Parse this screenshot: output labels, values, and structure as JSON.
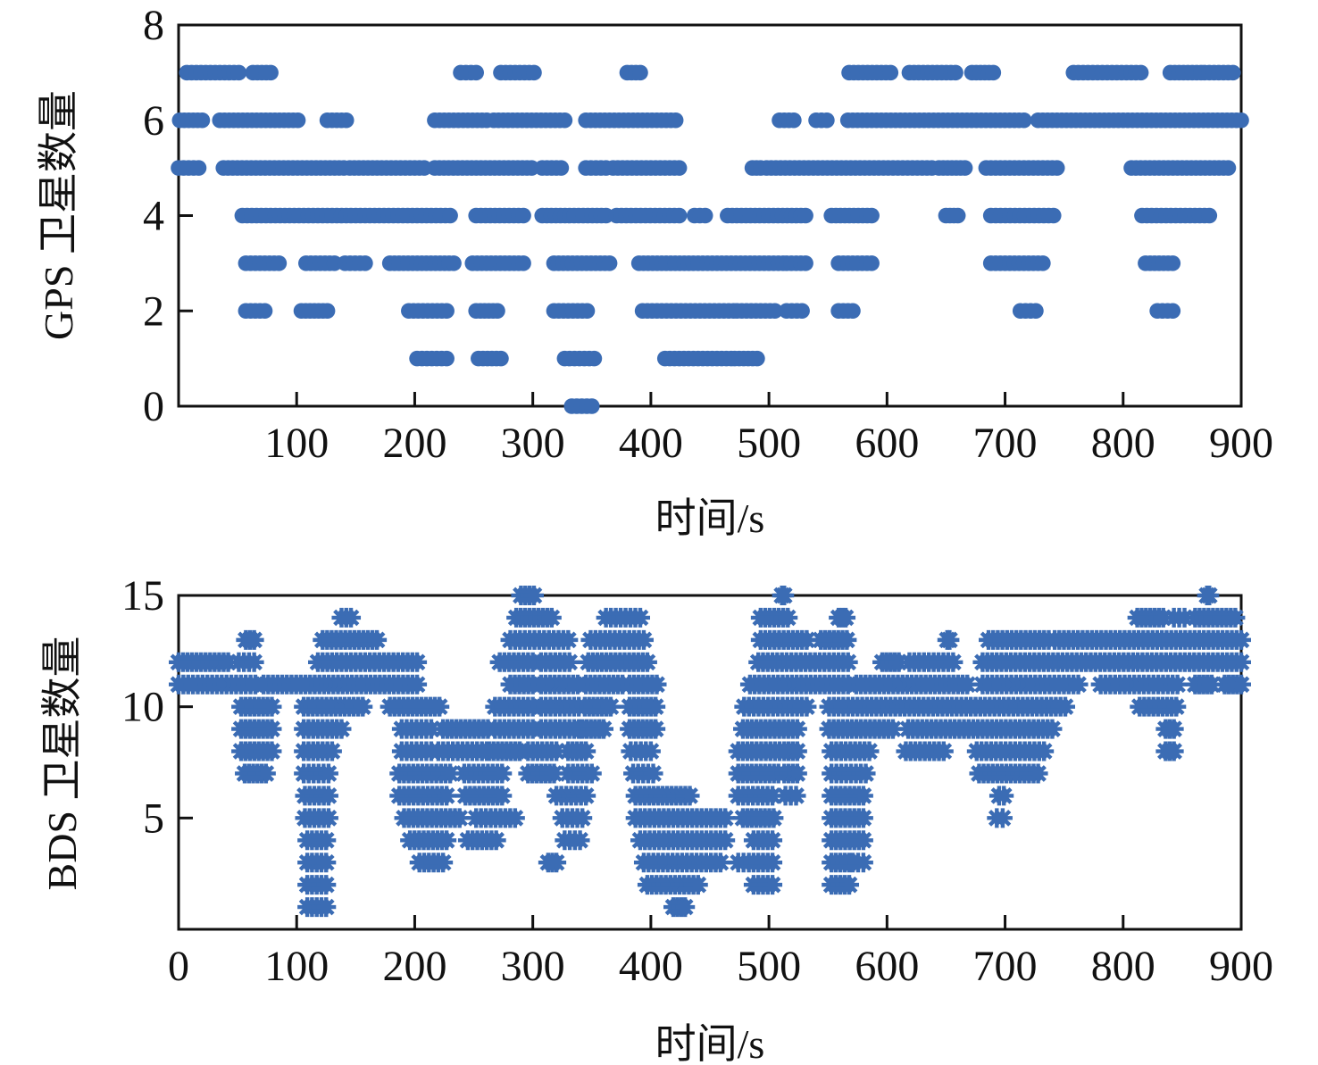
{
  "style": {
    "marker_color": "#3b6cb4",
    "axis_color": "#111111",
    "background": "#ffffff"
  },
  "chart_data": [
    {
      "type": "scatter",
      "marker": "circle",
      "title": "",
      "xlabel": "时间/s",
      "ylabel": "GPS 卫星数量",
      "series_name": "GPS satellite count",
      "xlim": [
        0,
        900
      ],
      "ylim": [
        0,
        8
      ],
      "grid": false,
      "legend": "none",
      "xticks": [
        0,
        100,
        200,
        300,
        400,
        500,
        600,
        700,
        800,
        900
      ],
      "xtick_labels": [
        "",
        "100",
        "200",
        "300",
        "400",
        "500",
        "600",
        "700",
        "800",
        "900"
      ],
      "yticks": [
        0,
        2,
        4,
        6,
        8
      ],
      "ytick_labels": [
        "0",
        "2",
        "4",
        "6",
        "8"
      ],
      "levels": [
        {
          "y": 7,
          "intervals": [
            [
              7,
              51
            ],
            [
              63,
              78
            ],
            [
              239,
              252
            ],
            [
              273,
              301
            ],
            [
              380,
              391
            ],
            [
              568,
              603
            ],
            [
              619,
              658
            ],
            [
              672,
              690
            ],
            [
              758,
              815
            ],
            [
              840,
              866
            ],
            [
              869,
              893
            ]
          ]
        },
        {
          "y": 6,
          "intervals": [
            [
              1,
              20
            ],
            [
              35,
              101
            ],
            [
              126,
              142
            ],
            [
              217,
              261
            ],
            [
              267,
              327
            ],
            [
              345,
              421
            ],
            [
              509,
              521
            ],
            [
              540,
              549
            ],
            [
              567,
              716
            ],
            [
              728,
              900
            ]
          ]
        },
        {
          "y": 5,
          "intervals": [
            [
              0,
              17
            ],
            [
              38,
              140
            ],
            [
              145,
              172
            ],
            [
              176,
              208
            ],
            [
              217,
              299
            ],
            [
              308,
              324
            ],
            [
              345,
              362
            ],
            [
              368,
              424
            ],
            [
              486,
              493
            ],
            [
              498,
              597
            ],
            [
              601,
              638
            ],
            [
              644,
              666
            ],
            [
              684,
              744
            ],
            [
              807,
              889
            ]
          ]
        },
        {
          "y": 4,
          "intervals": [
            [
              54,
              230
            ],
            [
              252,
              292
            ],
            [
              308,
              362
            ],
            [
              371,
              424
            ],
            [
              437,
              446
            ],
            [
              465,
              531
            ],
            [
              553,
              587
            ],
            [
              650,
              660
            ],
            [
              688,
              741
            ],
            [
              816,
              873
            ]
          ]
        },
        {
          "y": 3,
          "intervals": [
            [
              57,
              85
            ],
            [
              108,
              132
            ],
            [
              141,
              158
            ],
            [
              179,
              233
            ],
            [
              249,
              292
            ],
            [
              318,
              365
            ],
            [
              390,
              436
            ],
            [
              440,
              512
            ],
            [
              515,
              531
            ],
            [
              559,
              587
            ],
            [
              688,
              732
            ],
            [
              819,
              842
            ]
          ]
        },
        {
          "y": 2,
          "intervals": [
            [
              57,
              73
            ],
            [
              104,
              126
            ],
            [
              195,
              227
            ],
            [
              252,
              270
            ],
            [
              318,
              346
            ],
            [
              393,
              470
            ],
            [
              473,
              505
            ],
            [
              515,
              528
            ],
            [
              559,
              571
            ],
            [
              713,
              726
            ],
            [
              829,
              842
            ]
          ]
        },
        {
          "y": 1,
          "intervals": [
            [
              202,
              227
            ],
            [
              254,
              273
            ],
            [
              327,
              352
            ],
            [
              412,
              468
            ],
            [
              471,
              490
            ]
          ]
        },
        {
          "y": 0,
          "intervals": [
            [
              333,
              350
            ]
          ]
        }
      ]
    },
    {
      "type": "scatter",
      "marker": "asterisk",
      "title": "",
      "xlabel": "时间/s",
      "ylabel": "BDS 卫星数量",
      "series_name": "BDS satellite count",
      "xlim": [
        0,
        900
      ],
      "ylim": [
        0,
        15
      ],
      "grid": false,
      "legend": "none",
      "xticks": [
        0,
        100,
        200,
        300,
        400,
        500,
        600,
        700,
        800,
        900
      ],
      "xtick_labels": [
        "0",
        "100",
        "200",
        "300",
        "400",
        "500",
        "600",
        "700",
        "800",
        "900"
      ],
      "yticks": [
        0,
        5,
        10,
        15
      ],
      "ytick_labels": [
        "",
        "5",
        "10",
        "15"
      ],
      "levels": [
        {
          "y": 15,
          "intervals": [
            [
              290,
              301
            ],
            [
              511,
              513
            ],
            [
              871,
              873
            ]
          ]
        },
        {
          "y": 14,
          "intervals": [
            [
              138,
              146
            ],
            [
              286,
              316
            ],
            [
              362,
              391
            ],
            [
              493,
              516
            ],
            [
              559,
              565
            ],
            [
              812,
              834
            ],
            [
              843,
              852
            ],
            [
              861,
              895
            ]
          ]
        },
        {
          "y": 13,
          "intervals": [
            [
              57,
              64
            ],
            [
              122,
              168
            ],
            [
              281,
              330
            ],
            [
              349,
              394
            ],
            [
              493,
              532
            ],
            [
              544,
              566
            ],
            [
              651,
              653
            ],
            [
              686,
              737
            ],
            [
              742,
              900
            ]
          ]
        },
        {
          "y": 12,
          "intervals": [
            [
              0,
              42
            ],
            [
              51,
              64
            ],
            [
              118,
              202
            ],
            [
              272,
              300
            ],
            [
              307,
              331
            ],
            [
              347,
              397
            ],
            [
              491,
              567
            ],
            [
              596,
              610
            ],
            [
              619,
              656
            ],
            [
              681,
              900
            ]
          ]
        },
        {
          "y": 11,
          "intervals": [
            [
              0,
              65
            ],
            [
              72,
              202
            ],
            [
              281,
              300
            ],
            [
              307,
              338
            ],
            [
              345,
              376
            ],
            [
              382,
              405
            ],
            [
              484,
              567
            ],
            [
              574,
              668
            ],
            [
              681,
              762
            ],
            [
              781,
              846
            ],
            [
              861,
              875
            ],
            [
              886,
              900
            ]
          ]
        },
        {
          "y": 10,
          "intervals": [
            [
              53,
              79
            ],
            [
              106,
              156
            ],
            [
              179,
              221
            ],
            [
              268,
              300
            ],
            [
              307,
              339
            ],
            [
              344,
              366
            ],
            [
              382,
              404
            ],
            [
              479,
              532
            ],
            [
              551,
              751
            ],
            [
              814,
              845
            ]
          ]
        },
        {
          "y": 9,
          "intervals": [
            [
              53,
              79
            ],
            [
              106,
              138
            ],
            [
              189,
              214
            ],
            [
              224,
              262
            ],
            [
              268,
              300
            ],
            [
              307,
              339
            ],
            [
              342,
              360
            ],
            [
              382,
              404
            ],
            [
              478,
              524
            ],
            [
              551,
              605
            ],
            [
              618,
              740
            ],
            [
              836,
              843
            ]
          ]
        },
        {
          "y": 8,
          "intervals": [
            [
              53,
              79
            ],
            [
              106,
              130
            ],
            [
              189,
              214
            ],
            [
              220,
              261
            ],
            [
              263,
              289
            ],
            [
              296,
              320
            ],
            [
              330,
              345
            ],
            [
              383,
              400
            ],
            [
              474,
              509
            ],
            [
              513,
              524
            ],
            [
              553,
              585
            ],
            [
              616,
              648
            ],
            [
              676,
              733
            ],
            [
              836,
              843
            ]
          ]
        },
        {
          "y": 7,
          "intervals": [
            [
              56,
              74
            ],
            [
              106,
              127
            ],
            [
              187,
              230
            ],
            [
              242,
              274
            ],
            [
              296,
              318
            ],
            [
              330,
              350
            ],
            [
              385,
              402
            ],
            [
              474,
              508
            ],
            [
              513,
              524
            ],
            [
              553,
              582
            ],
            [
              678,
              728
            ]
          ]
        },
        {
          "y": 6,
          "intervals": [
            [
              107,
              127
            ],
            [
              187,
              227
            ],
            [
              243,
              274
            ],
            [
              320,
              345
            ],
            [
              387,
              433
            ],
            [
              474,
              503
            ],
            [
              514,
              523
            ],
            [
              553,
              580
            ],
            [
              695,
              699
            ]
          ]
        },
        {
          "y": 5,
          "intervals": [
            [
              107,
              127
            ],
            [
              191,
              238
            ],
            [
              252,
              285
            ],
            [
              325,
              342
            ],
            [
              387,
              463
            ],
            [
              478,
              504
            ],
            [
              553,
              580
            ],
            [
              693,
              698
            ]
          ]
        },
        {
          "y": 4,
          "intervals": [
            [
              109,
              125
            ],
            [
              196,
              227
            ],
            [
              245,
              269
            ],
            [
              327,
              340
            ],
            [
              391,
              463
            ],
            [
              487,
              503
            ],
            [
              553,
              580
            ]
          ]
        },
        {
          "y": 3,
          "intervals": [
            [
              109,
              125
            ],
            [
              204,
              224
            ],
            [
              313,
              320
            ],
            [
              394,
              459
            ],
            [
              474,
              483
            ],
            [
              487,
              503
            ],
            [
              553,
              568
            ],
            [
              571,
              580
            ]
          ]
        },
        {
          "y": 2,
          "intervals": [
            [
              109,
              125
            ],
            [
              397,
              440
            ],
            [
              487,
              503
            ],
            [
              553,
              568
            ]
          ]
        },
        {
          "y": 1,
          "intervals": [
            [
              109,
              125
            ],
            [
              419,
              429
            ]
          ]
        }
      ]
    }
  ]
}
